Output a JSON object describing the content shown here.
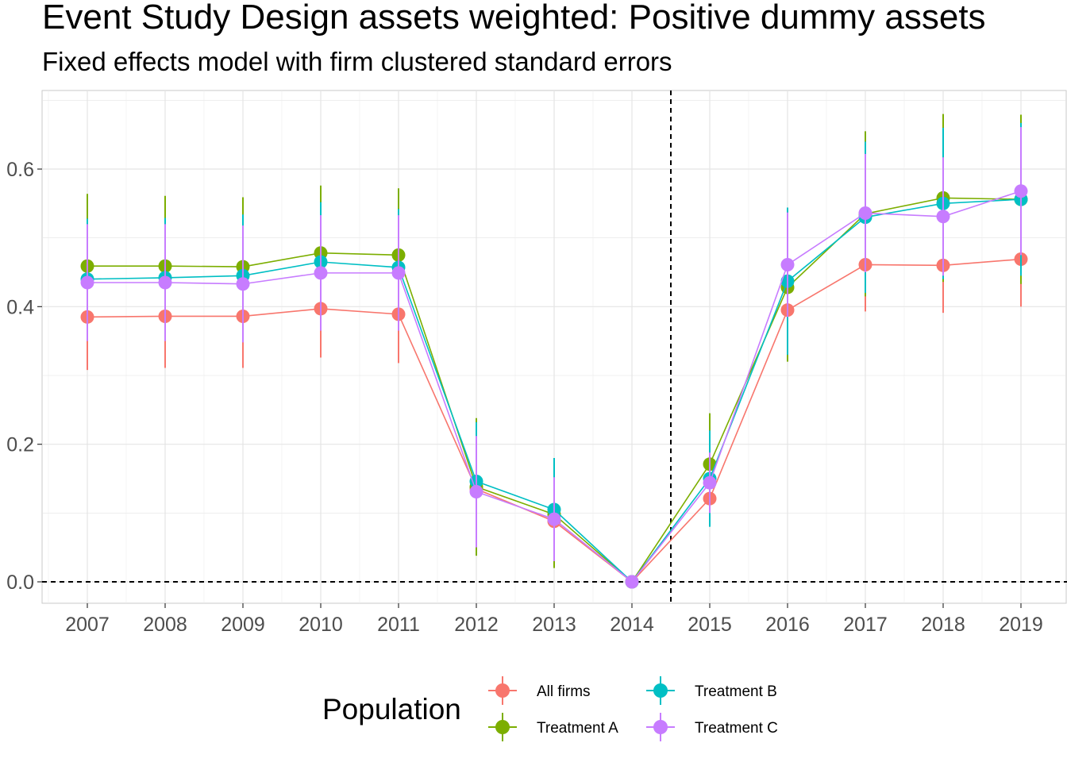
{
  "chart_data": {
    "type": "line",
    "title": "Event Study Design assets weighted: Positive dummy assets",
    "subtitle": "Fixed effects model with firm clustered standard errors",
    "xlabel": "",
    "ylabel": "",
    "categories": [
      "2007",
      "2008",
      "2009",
      "2010",
      "2011",
      "2012",
      "2013",
      "2014",
      "2015",
      "2016",
      "2017",
      "2018",
      "2019"
    ],
    "y_ticks": [
      "0.0",
      "0.2",
      "0.4",
      "0.6"
    ],
    "ylim": [
      -0.03,
      0.71
    ],
    "grid": true,
    "reference_lines": {
      "vertical_between": [
        "2014",
        "2015"
      ],
      "horizontal_y": 0.0,
      "style": "dashed"
    },
    "legend": {
      "title": "Population",
      "placement": "bottom"
    },
    "series": [
      {
        "name": "All firms",
        "color": "#F8766D",
        "values": [
          0.385,
          0.386,
          0.386,
          0.397,
          0.389,
          0.135,
          0.088,
          0.0,
          0.121,
          0.395,
          0.461,
          0.46,
          0.469
        ],
        "lower": [
          0.308,
          0.311,
          0.311,
          0.326,
          0.318,
          0.06,
          0.03,
          0.0,
          0.082,
          0.33,
          0.393,
          0.391,
          0.4
        ],
        "upper": [
          0.462,
          0.461,
          0.461,
          0.468,
          0.46,
          0.21,
          0.146,
          0.0,
          0.16,
          0.46,
          0.529,
          0.529,
          0.538
        ]
      },
      {
        "name": "Treatment A",
        "color": "#7CAE00",
        "values": [
          0.459,
          0.459,
          0.458,
          0.478,
          0.475,
          0.138,
          0.098,
          0.0,
          0.171,
          0.428,
          0.535,
          0.558,
          0.556
        ],
        "lower": [
          0.354,
          0.357,
          0.357,
          0.38,
          0.378,
          0.038,
          0.02,
          0.0,
          0.097,
          0.32,
          0.415,
          0.436,
          0.433
        ],
        "upper": [
          0.564,
          0.561,
          0.559,
          0.576,
          0.572,
          0.238,
          0.176,
          0.0,
          0.245,
          0.536,
          0.655,
          0.68,
          0.679
        ]
      },
      {
        "name": "Treatment B",
        "color": "#00BFC4",
        "values": [
          0.44,
          0.442,
          0.445,
          0.465,
          0.457,
          0.146,
          0.105,
          0.0,
          0.15,
          0.437,
          0.53,
          0.55,
          0.556
        ],
        "lower": [
          0.352,
          0.355,
          0.356,
          0.378,
          0.372,
          0.06,
          0.03,
          0.0,
          0.08,
          0.33,
          0.42,
          0.44,
          0.445
        ],
        "upper": [
          0.528,
          0.529,
          0.534,
          0.552,
          0.542,
          0.232,
          0.18,
          0.0,
          0.22,
          0.544,
          0.64,
          0.66,
          0.667
        ]
      },
      {
        "name": "Treatment C",
        "color": "#C77CFF",
        "values": [
          0.435,
          0.435,
          0.433,
          0.449,
          0.449,
          0.131,
          0.091,
          0.0,
          0.144,
          0.461,
          0.536,
          0.531,
          0.568
        ],
        "lower": [
          0.35,
          0.35,
          0.348,
          0.365,
          0.365,
          0.05,
          0.03,
          0.0,
          0.1,
          0.385,
          0.45,
          0.445,
          0.475
        ],
        "upper": [
          0.52,
          0.52,
          0.518,
          0.533,
          0.533,
          0.212,
          0.152,
          0.0,
          0.188,
          0.537,
          0.622,
          0.617,
          0.661
        ]
      }
    ]
  }
}
